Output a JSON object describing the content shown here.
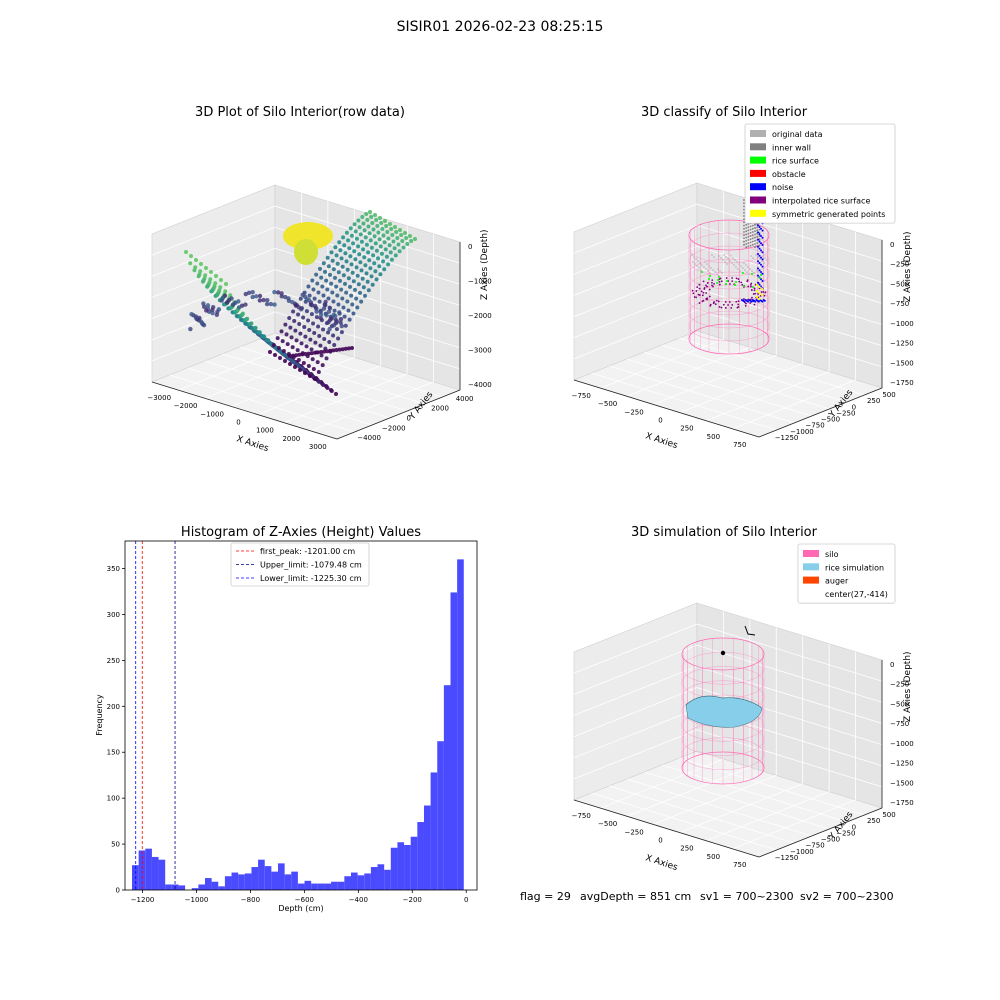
{
  "suptitle": "SISIR01 2026-02-23 08:25:15",
  "footer": {
    "flag": "flag = 29",
    "avg_depth": "avgDepth = 851 cm",
    "sv1": "sv1 = 700~2300",
    "sv2": "sv2 = 700~2300"
  },
  "colors": {
    "hist_bar": "#4a4aff",
    "first_peak": "#ff0000",
    "upper_limit": "#00008b",
    "lower_limit": "#0000ff",
    "silo_pink": "#ff69b4",
    "rice_sim": "#87ceeb",
    "auger": "#ff4500",
    "original": "#b0b0b0",
    "inner_wall": "#808080",
    "rice_surface": "#00ff00",
    "obstacle": "#ff0000",
    "noise": "#0000ff",
    "interpolated": "#800080",
    "symmetric": "#ffff00"
  },
  "chart_data": [
    {
      "type": "scatter",
      "title": "3D Plot of Silo Interior(row data)",
      "xlabel": "X Axies",
      "ylabel": "Y Axies",
      "zlabel": "Z Axies (Depth)",
      "x_ticks": [
        "−3000",
        "−2000",
        "−1000",
        "0",
        "1000",
        "2000",
        "3000"
      ],
      "y_ticks": [
        "−4000",
        "−2000",
        "0",
        "2000",
        "4000"
      ],
      "z_ticks": [
        "0",
        "−1000",
        "−2000",
        "−3000",
        "−4000"
      ],
      "colormap": "viridis"
    },
    {
      "type": "scatter",
      "title": "3D classify of Silo Interior",
      "xlabel": "X Axies",
      "ylabel": "Y Axies",
      "zlabel": "Z Axies (Depth)",
      "x_ticks": [
        "−750",
        "−500",
        "−250",
        "0",
        "250",
        "500",
        "750"
      ],
      "y_ticks": [
        "−1250",
        "−1000",
        "−750",
        "−500",
        "−250",
        "0",
        "250",
        "500"
      ],
      "z_ticks": [
        "0",
        "−250",
        "−500",
        "−750",
        "−1000",
        "−1250",
        "−1500",
        "−1750"
      ],
      "legend": [
        "original data",
        "inner wall",
        "rice surface",
        "obstacle",
        "noise",
        "interpolated rice surface",
        "symmetric generated points"
      ],
      "legend_position": "top-right"
    },
    {
      "type": "bar",
      "title": "Histogram of Z-Axies (Height) Values",
      "xlabel": "Depth (cm)",
      "ylabel": "Frequency",
      "xlim": [
        -1265,
        40
      ],
      "ylim": [
        0,
        380
      ],
      "x_ticks": [
        -1200,
        -1000,
        -800,
        -600,
        -400,
        -200,
        0
      ],
      "x_tick_labels": [
        "−1200",
        "−1000",
        "−800",
        "−600",
        "−400",
        "−200",
        "0"
      ],
      "y_ticks": [
        0,
        50,
        100,
        150,
        200,
        250,
        300,
        350
      ],
      "y_tick_labels": [
        "0",
        "50",
        "100",
        "150",
        "200",
        "250",
        "300",
        "350"
      ],
      "bin_start": -1239,
      "bin_width": 24.6,
      "values": [
        27,
        43,
        45,
        36,
        33,
        6,
        6,
        5,
        0,
        2,
        6,
        13,
        9,
        4,
        15,
        19,
        17,
        18,
        25,
        33,
        26,
        20,
        29,
        17,
        20,
        7,
        10,
        7,
        7,
        7,
        9,
        9,
        15,
        19,
        16,
        18,
        25,
        28,
        22,
        46,
        52,
        49,
        58,
        74,
        92,
        128,
        162,
        223,
        324,
        360
      ],
      "lines": [
        {
          "value": -1201.0,
          "label": "first_peak: -1201.00 cm"
        },
        {
          "value": -1079.48,
          "label": "Upper_limit: -1079.48 cm"
        },
        {
          "value": -1225.3,
          "label": "Lower_limit: -1225.30 cm"
        }
      ],
      "legend_position": "top-center"
    },
    {
      "type": "scatter",
      "title": "3D simulation of Silo Interior",
      "xlabel": "X Axies",
      "ylabel": "Y Axies",
      "zlabel": "Z Axies (Depth)",
      "x_ticks": [
        "−750",
        "−500",
        "−250",
        "0",
        "250",
        "500",
        "750"
      ],
      "y_ticks": [
        "−1250",
        "−1000",
        "−750",
        "−500",
        "−250",
        "0",
        "250",
        "500"
      ],
      "z_ticks": [
        "0",
        "−250",
        "−500",
        "−750",
        "−1000",
        "−1250",
        "−1500",
        "−1750"
      ],
      "legend": [
        "silo",
        "rice simulation",
        "auger",
        "center(27,-414)"
      ],
      "legend_position": "top-right"
    }
  ]
}
